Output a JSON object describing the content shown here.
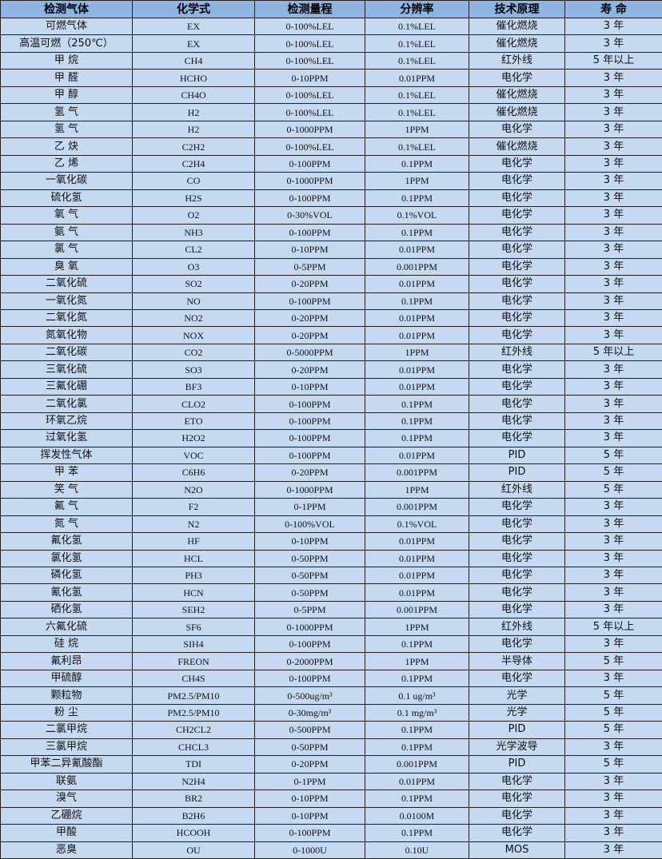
{
  "colors": {
    "header_bg": "#8db4e2",
    "body_bg": "#c5d9f1",
    "border": "#1f1f1f"
  },
  "headers": [
    "检测气体",
    "化学式",
    "检测量程",
    "分辨率",
    "技术原理",
    "寿 命"
  ],
  "rows": [
    [
      "可燃气体",
      "EX",
      "0-100%LEL",
      "0.1%LEL",
      "催化燃烧",
      "3 年"
    ],
    [
      "高温可燃（250℃）",
      "EX",
      "0-100%LEL",
      "0.1%LEL",
      "催化燃烧",
      "3 年"
    ],
    [
      "甲 烷",
      "CH4",
      "0-100%LEL",
      "0.1%LEL",
      "红外线",
      "5 年以上"
    ],
    [
      "甲 醛",
      "HCHO",
      "0-10PPM",
      "0.01PPM",
      "电化学",
      "3 年"
    ],
    [
      "甲 醇",
      "CH4O",
      "0-100%LEL",
      "0.1%LEL",
      "催化燃烧",
      "3 年"
    ],
    [
      "氢 气",
      "H2",
      "0-100%LEL",
      "0.1%LEL",
      "催化燃烧",
      "3 年"
    ],
    [
      "氢 气",
      "H2",
      "0-1000PPM",
      "1PPM",
      "电化学",
      "3 年"
    ],
    [
      "乙 炔",
      "C2H2",
      "0-100%LEL",
      "0.1%LEL",
      "催化燃烧",
      "3 年"
    ],
    [
      "乙 烯",
      "C2H4",
      "0-100PPM",
      "0.1PPM",
      "电化学",
      "3 年"
    ],
    [
      "一氧化碳",
      "CO",
      "0-1000PPM",
      "1PPM",
      "电化学",
      "3 年"
    ],
    [
      "硫化氢",
      "H2S",
      "0-100PPM",
      "0.1PPM",
      "电化学",
      "3 年"
    ],
    [
      "氧 气",
      "O2",
      "0-30%VOL",
      "0.1%VOL",
      "电化学",
      "3 年"
    ],
    [
      "氨 气",
      "NH3",
      "0-100PPM",
      "0.1PPM",
      "电化学",
      "3 年"
    ],
    [
      "氯 气",
      "CL2",
      "0-10PPM",
      "0.01PPM",
      "电化学",
      "3 年"
    ],
    [
      "臭 氧",
      "O3",
      "0-5PPM",
      "0.001PPM",
      "电化学",
      "3 年"
    ],
    [
      "二氧化硫",
      "SO2",
      "0-20PPM",
      "0.01PPM",
      "电化学",
      "3 年"
    ],
    [
      "一氧化氮",
      "NO",
      "0-100PPM",
      "0.1PPM",
      "电化学",
      "3 年"
    ],
    [
      "二氧化氮",
      "NO2",
      "0-20PPM",
      "0.01PPM",
      "电化学",
      "3 年"
    ],
    [
      "氮氧化物",
      "NOX",
      "0-20PPM",
      "0.01PPM",
      "电化学",
      "3 年"
    ],
    [
      "二氧化碳",
      "CO2",
      "0-5000PPM",
      "1PPM",
      "红外线",
      "5 年以上"
    ],
    [
      "三氧化硫",
      "SO3",
      "0-20PPM",
      "0.01PPM",
      "电化学",
      "3 年"
    ],
    [
      "三氟化硼",
      "BF3",
      "0-10PPM",
      "0.01PPM",
      "电化学",
      "3 年"
    ],
    [
      "二氧化氯",
      "CLO2",
      "0-100PPM",
      "0.1PPM",
      "电化学",
      "3 年"
    ],
    [
      "环氧乙烷",
      "ETO",
      "0-100PPM",
      "0.1PPM",
      "电化学",
      "3 年"
    ],
    [
      "过氧化氢",
      "H2O2",
      "0-100PPM",
      "0.1PPM",
      "电化学",
      "3 年"
    ],
    [
      "挥发性气体",
      "VOC",
      "0-100PPM",
      "0.01PPM",
      "PID",
      "5 年"
    ],
    [
      "甲 苯",
      "C6H6",
      "0-20PPM",
      "0.001PPM",
      "PID",
      "5 年"
    ],
    [
      "笑 气",
      "N2O",
      "0-1000PPM",
      "1PPM",
      "红外线",
      "5 年"
    ],
    [
      "氟 气",
      "F2",
      "0-1PPM",
      "0.001PPM",
      "电化学",
      "3 年"
    ],
    [
      "氮 气",
      "N2",
      "0-100%VOL",
      "0.1%VOL",
      "电化学",
      "3 年"
    ],
    [
      "氟化氢",
      "HF",
      "0-10PPM",
      "0.01PPM",
      "电化学",
      "3 年"
    ],
    [
      "氯化氢",
      "HCL",
      "0-50PPM",
      "0.01PPM",
      "电化学",
      "3 年"
    ],
    [
      "磷化氢",
      "PH3",
      "0-50PPM",
      "0.01PPM",
      "电化学",
      "3 年"
    ],
    [
      "氰化氢",
      "HCN",
      "0-50PPM",
      "0.01PPM",
      "电化学",
      "3 年"
    ],
    [
      "硒化氢",
      "SEH2",
      "0-5PPM",
      "0.001PPM",
      "电化学",
      "3 年"
    ],
    [
      "六氟化硫",
      "SF6",
      "0-1000PPM",
      "1PPM",
      "红外线",
      "5 年以上"
    ],
    [
      "硅 烷",
      "SIH4",
      "0-100PPM",
      "0.1PPM",
      "电化学",
      "3 年"
    ],
    [
      "氟利昂",
      "FREON",
      "0-2000PPM",
      "1PPM",
      "半导体",
      "5 年"
    ],
    [
      "甲硫醇",
      "CH4S",
      "0-100PPM",
      "0.1PPM",
      "电化学",
      "3 年"
    ],
    [
      "颗粒物",
      "PM2.5/PM10",
      "0-500ug/m³",
      "0.1 ug/m³",
      "光学",
      "5 年"
    ],
    [
      "粉 尘",
      "PM2.5/PM10",
      "0-30mg/m³",
      "0.1 mg/m³",
      "光学",
      "5 年"
    ],
    [
      "二氯甲烷",
      "CH2CL2",
      "0-500PPM",
      "0.1PPM",
      "PID",
      "5 年"
    ],
    [
      "三氯甲烷",
      "CHCL3",
      "0-50PPM",
      "0.1PPM",
      "光学波导",
      "3 年"
    ],
    [
      "甲苯二异氰酸酯",
      "TDI",
      "0-20PPM",
      "0.001PPM",
      "PID",
      "5 年"
    ],
    [
      "联氨",
      "N2H4",
      "0-1PPM",
      "0.01PPM",
      "电化学",
      "3 年"
    ],
    [
      "溴气",
      "BR2",
      "0-10PPM",
      "0.1PPM",
      "电化学",
      "3 年"
    ],
    [
      "乙硼烷",
      "B2H6",
      "0-10PPM",
      "0.0100M",
      "电化学",
      "3 年"
    ],
    [
      "甲酸",
      "HCOOH",
      "0-100PPM",
      "0.1PPM",
      "电化学",
      "3 年"
    ],
    [
      "恶臭",
      "OU",
      "0-1000U",
      "0.10U",
      "MOS",
      "3 年"
    ]
  ]
}
